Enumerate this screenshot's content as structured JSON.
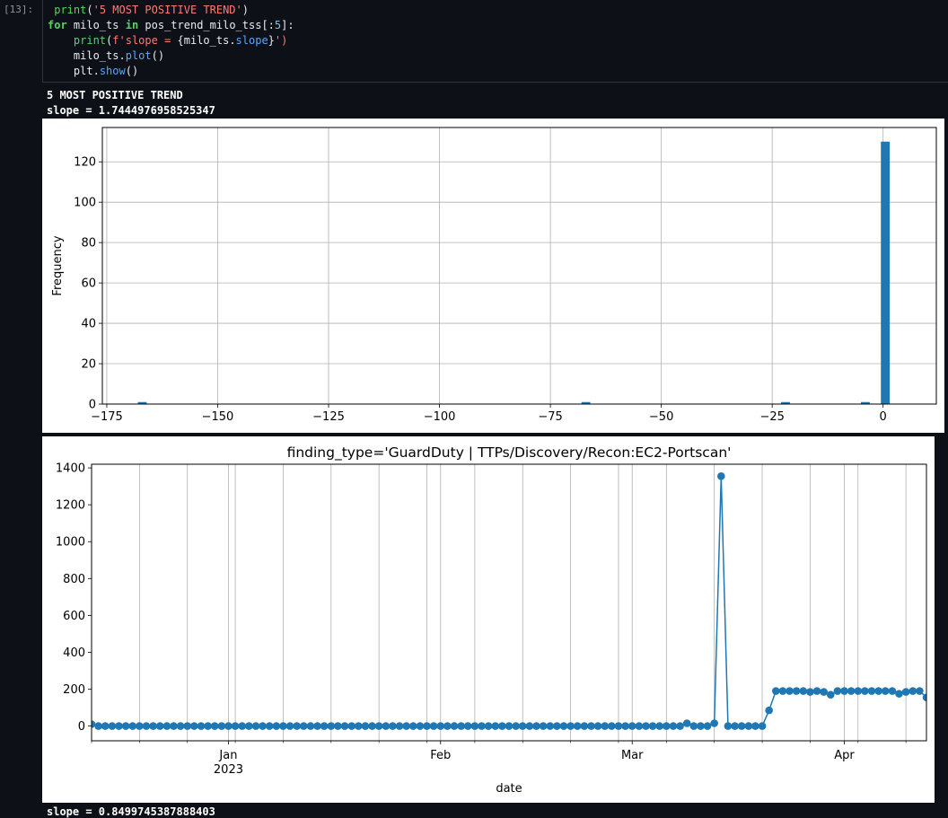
{
  "cell": {
    "prompt": "[13]:",
    "code": {
      "l1_fn": "print",
      "l1_str": "'5 MOST POSITIVE TREND'",
      "l2_for": "for",
      "l2_var": " milo_ts ",
      "l2_in": "in",
      "l2_rest": " pos_trend_milo_tss[:",
      "l2_num": "5",
      "l2_end": "]:",
      "l3_fn": "print",
      "l3_open": "(",
      "l3_str": "f'slope = ",
      "l3_brace": "{milo_ts.",
      "l3_attr": "slope",
      "l3_close": "}",
      "l3_end": "')",
      "l4_obj": "milo_ts.",
      "l4_attr": "plot",
      "l4_end": "()",
      "l5_obj": "plt.",
      "l5_attr": "show",
      "l5_end": "()"
    }
  },
  "outputs": {
    "header": "5 MOST POSITIVE TREND",
    "slope1": "slope = 1.7444976958525347",
    "slope2": "slope = 0.8499745387888403"
  },
  "chart_data": [
    {
      "type": "bar",
      "subtype": "histogram",
      "title": "",
      "xlabel": "",
      "ylabel": "Frequency",
      "xlim": [
        -176,
        12
      ],
      "ylim": [
        0,
        137
      ],
      "xticks": [
        -175,
        -150,
        -125,
        -100,
        -75,
        -50,
        -25,
        0
      ],
      "yticks": [
        0,
        20,
        40,
        60,
        80,
        100,
        120
      ],
      "grid": true,
      "color": "#1f77b4",
      "bin_width": 2,
      "bins": [
        {
          "x": -167,
          "value": 1
        },
        {
          "x": -67,
          "value": 1
        },
        {
          "x": -22,
          "value": 1
        },
        {
          "x": -4,
          "value": 1
        },
        {
          "x": 0.5,
          "value": 130
        }
      ]
    },
    {
      "type": "line",
      "title": "finding_type='GuardDuty | TTPs/Discovery/Recon:EC2-Portscan'",
      "xlabel": "date",
      "ylabel": "",
      "ylim": [
        -80,
        1420
      ],
      "yticks": [
        0,
        200,
        400,
        600,
        800,
        1000,
        1200,
        1400
      ],
      "x_range": [
        "2022-12-12",
        "2023-04-13"
      ],
      "grid": true,
      "color": "#1f77b4",
      "xticks": [
        {
          "date": "2023-01-01",
          "label": "Jan",
          "label2": "2023"
        },
        {
          "date": "2023-02-01",
          "label": "Feb",
          "label2": ""
        },
        {
          "date": "2023-03-01",
          "label": "Mar",
          "label2": ""
        },
        {
          "date": "2023-04-01",
          "label": "Apr",
          "label2": ""
        }
      ],
      "series": [
        {
          "values": [
            {
              "date": "2022-12-12",
              "value": 10
            },
            {
              "date": "2022-12-13",
              "value": 0
            },
            {
              "date": "2022-12-14",
              "value": 0
            },
            {
              "date": "2022-12-15",
              "value": 0
            },
            {
              "date": "2022-12-16",
              "value": 0
            },
            {
              "date": "2022-12-17",
              "value": 0
            },
            {
              "date": "2022-12-18",
              "value": 0
            },
            {
              "date": "2022-12-19",
              "value": 0
            },
            {
              "date": "2022-12-20",
              "value": 0
            },
            {
              "date": "2022-12-21",
              "value": 0
            },
            {
              "date": "2022-12-22",
              "value": 0
            },
            {
              "date": "2022-12-23",
              "value": 0
            },
            {
              "date": "2022-12-24",
              "value": 0
            },
            {
              "date": "2022-12-25",
              "value": 0
            },
            {
              "date": "2022-12-26",
              "value": 0
            },
            {
              "date": "2022-12-27",
              "value": 0
            },
            {
              "date": "2022-12-28",
              "value": 0
            },
            {
              "date": "2022-12-29",
              "value": 0
            },
            {
              "date": "2022-12-30",
              "value": 0
            },
            {
              "date": "2022-12-31",
              "value": 0
            },
            {
              "date": "2023-01-01",
              "value": 0
            },
            {
              "date": "2023-01-02",
              "value": 0
            },
            {
              "date": "2023-01-03",
              "value": 0
            },
            {
              "date": "2023-01-04",
              "value": 0
            },
            {
              "date": "2023-01-05",
              "value": 0
            },
            {
              "date": "2023-01-06",
              "value": 0
            },
            {
              "date": "2023-01-07",
              "value": 0
            },
            {
              "date": "2023-01-08",
              "value": 0
            },
            {
              "date": "2023-01-09",
              "value": 0
            },
            {
              "date": "2023-01-10",
              "value": 0
            },
            {
              "date": "2023-01-11",
              "value": 0
            },
            {
              "date": "2023-01-12",
              "value": 0
            },
            {
              "date": "2023-01-13",
              "value": 0
            },
            {
              "date": "2023-01-14",
              "value": 0
            },
            {
              "date": "2023-01-15",
              "value": 0
            },
            {
              "date": "2023-01-16",
              "value": 0
            },
            {
              "date": "2023-01-17",
              "value": 0
            },
            {
              "date": "2023-01-18",
              "value": 0
            },
            {
              "date": "2023-01-19",
              "value": 0
            },
            {
              "date": "2023-01-20",
              "value": 0
            },
            {
              "date": "2023-01-21",
              "value": 0
            },
            {
              "date": "2023-01-22",
              "value": 0
            },
            {
              "date": "2023-01-23",
              "value": 0
            },
            {
              "date": "2023-01-24",
              "value": 0
            },
            {
              "date": "2023-01-25",
              "value": 0
            },
            {
              "date": "2023-01-26",
              "value": 0
            },
            {
              "date": "2023-01-27",
              "value": 0
            },
            {
              "date": "2023-01-28",
              "value": 0
            },
            {
              "date": "2023-01-29",
              "value": 0
            },
            {
              "date": "2023-01-30",
              "value": 0
            },
            {
              "date": "2023-01-31",
              "value": 0
            },
            {
              "date": "2023-02-01",
              "value": 0
            },
            {
              "date": "2023-02-02",
              "value": 0
            },
            {
              "date": "2023-02-03",
              "value": 0
            },
            {
              "date": "2023-02-04",
              "value": 0
            },
            {
              "date": "2023-02-05",
              "value": 0
            },
            {
              "date": "2023-02-06",
              "value": 0
            },
            {
              "date": "2023-02-07",
              "value": 0
            },
            {
              "date": "2023-02-08",
              "value": 0
            },
            {
              "date": "2023-02-09",
              "value": 0
            },
            {
              "date": "2023-02-10",
              "value": 0
            },
            {
              "date": "2023-02-11",
              "value": 0
            },
            {
              "date": "2023-02-12",
              "value": 0
            },
            {
              "date": "2023-02-13",
              "value": 0
            },
            {
              "date": "2023-02-14",
              "value": 0
            },
            {
              "date": "2023-02-15",
              "value": 0
            },
            {
              "date": "2023-02-16",
              "value": 0
            },
            {
              "date": "2023-02-17",
              "value": 0
            },
            {
              "date": "2023-02-18",
              "value": 0
            },
            {
              "date": "2023-02-19",
              "value": 0
            },
            {
              "date": "2023-02-20",
              "value": 0
            },
            {
              "date": "2023-02-21",
              "value": 0
            },
            {
              "date": "2023-02-22",
              "value": 0
            },
            {
              "date": "2023-02-23",
              "value": 0
            },
            {
              "date": "2023-02-24",
              "value": 0
            },
            {
              "date": "2023-02-25",
              "value": 0
            },
            {
              "date": "2023-02-26",
              "value": 0
            },
            {
              "date": "2023-02-27",
              "value": 0
            },
            {
              "date": "2023-02-28",
              "value": 0
            },
            {
              "date": "2023-03-01",
              "value": 0
            },
            {
              "date": "2023-03-02",
              "value": 0
            },
            {
              "date": "2023-03-03",
              "value": 0
            },
            {
              "date": "2023-03-04",
              "value": 0
            },
            {
              "date": "2023-03-05",
              "value": 0
            },
            {
              "date": "2023-03-06",
              "value": 0
            },
            {
              "date": "2023-03-07",
              "value": 0
            },
            {
              "date": "2023-03-08",
              "value": 0
            },
            {
              "date": "2023-03-09",
              "value": 15
            },
            {
              "date": "2023-03-10",
              "value": 0
            },
            {
              "date": "2023-03-11",
              "value": 0
            },
            {
              "date": "2023-03-12",
              "value": 0
            },
            {
              "date": "2023-03-13",
              "value": 15
            },
            {
              "date": "2023-03-14",
              "value": 1355
            },
            {
              "date": "2023-03-15",
              "value": 0
            },
            {
              "date": "2023-03-16",
              "value": 0
            },
            {
              "date": "2023-03-17",
              "value": 0
            },
            {
              "date": "2023-03-18",
              "value": 0
            },
            {
              "date": "2023-03-19",
              "value": 0
            },
            {
              "date": "2023-03-20",
              "value": 0
            },
            {
              "date": "2023-03-21",
              "value": 85
            },
            {
              "date": "2023-03-22",
              "value": 190
            },
            {
              "date": "2023-03-23",
              "value": 190
            },
            {
              "date": "2023-03-24",
              "value": 190
            },
            {
              "date": "2023-03-25",
              "value": 190
            },
            {
              "date": "2023-03-26",
              "value": 190
            },
            {
              "date": "2023-03-27",
              "value": 185
            },
            {
              "date": "2023-03-28",
              "value": 190
            },
            {
              "date": "2023-03-29",
              "value": 185
            },
            {
              "date": "2023-03-30",
              "value": 170
            },
            {
              "date": "2023-03-31",
              "value": 190
            },
            {
              "date": "2023-04-01",
              "value": 190
            },
            {
              "date": "2023-04-02",
              "value": 190
            },
            {
              "date": "2023-04-03",
              "value": 190
            },
            {
              "date": "2023-04-04",
              "value": 190
            },
            {
              "date": "2023-04-05",
              "value": 190
            },
            {
              "date": "2023-04-06",
              "value": 190
            },
            {
              "date": "2023-04-07",
              "value": 190
            },
            {
              "date": "2023-04-08",
              "value": 190
            },
            {
              "date": "2023-04-09",
              "value": 175
            },
            {
              "date": "2023-04-10",
              "value": 185
            },
            {
              "date": "2023-04-11",
              "value": 190
            },
            {
              "date": "2023-04-12",
              "value": 190
            },
            {
              "date": "2023-04-13",
              "value": 155
            }
          ]
        }
      ]
    }
  ]
}
